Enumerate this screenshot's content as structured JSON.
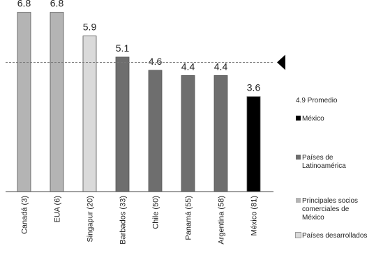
{
  "chart_data": {
    "type": "bar",
    "categories": [
      "Canadá (3)",
      "EUA (6)",
      "Singapur (20)",
      "Barbados (33)",
      "Chile (50)",
      "Panamá (55)",
      "Argentina (58)",
      "México (81)"
    ],
    "values": [
      6.8,
      6.8,
      5.9,
      5.1,
      4.6,
      4.4,
      4.4,
      3.6
    ],
    "value_labels": [
      "6.8",
      "6.8",
      "5.9",
      "5.1",
      "4.6",
      "4.4",
      "4.4",
      "3.6"
    ],
    "groups": [
      "socios",
      "socios",
      "desarrollados",
      "latam",
      "latam",
      "latam",
      "latam",
      "mexico"
    ],
    "ylim": [
      0,
      7
    ],
    "average": {
      "value": 4.9,
      "label": "4.9 Promedio"
    },
    "grid": false,
    "legend_position": "right",
    "colors": {
      "mexico": "#000000",
      "latam": "#6e6e6e",
      "socios": "#b4b4b4",
      "desarrollados": "#dadada",
      "average_line": "#777777",
      "axis": "#444444"
    }
  },
  "legend": [
    {
      "key": "mexico",
      "label": "México"
    },
    {
      "key": "latam",
      "label": "Países de Latinoamérica"
    },
    {
      "key": "socios",
      "label": "Principales socios comerciales de México"
    },
    {
      "key": "desarrollados",
      "label": "Países desarrollados"
    }
  ]
}
